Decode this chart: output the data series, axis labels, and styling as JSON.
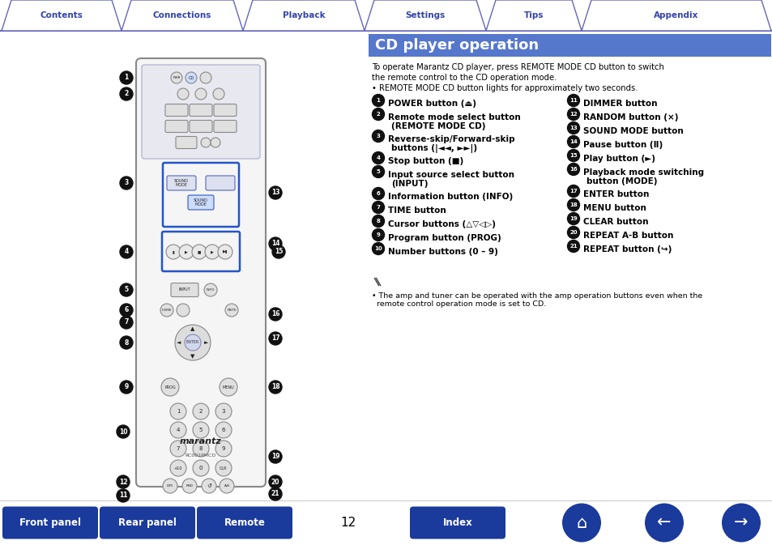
{
  "bg_color": "#ffffff",
  "page_width": 9.54,
  "page_height": 6.73,
  "dpi": 100,
  "tab_labels": [
    "Contents",
    "Connections",
    "Playback",
    "Settings",
    "Tips",
    "Appendix"
  ],
  "tab_border_color": "#6666bb",
  "tab_text_color": "#3344aa",
  "title_text": "CD player operation",
  "title_bg": "#5577cc",
  "title_text_color": "#ffffff",
  "intro_lines": [
    "To operate Marantz CD player, press REMOTE MODE CD button to switch",
    "the remote control to the CD operation mode.",
    "• REMOTE MODE CD button lights for approximately two seconds."
  ],
  "left_items": [
    [
      "1",
      "POWER button (⏏)",
      false
    ],
    [
      "2",
      "Remote mode select button\n(REMOTE MODE CD)",
      false
    ],
    [
      "3",
      "Reverse-skip/Forward-skip\nbuttons (|◄◄, ►►|)",
      false
    ],
    [
      "4",
      "Stop button (■)",
      false
    ],
    [
      "5",
      "Input source select button\n(INPUT)",
      false
    ],
    [
      "6",
      "Information button (INFO)",
      false
    ],
    [
      "7",
      "TIME button",
      false
    ],
    [
      "8",
      "Cursor buttons (△▽◁▷)",
      false
    ],
    [
      "9",
      "Program button (PROG)",
      false
    ],
    [
      "10",
      "Number buttons (0 – 9)",
      false
    ]
  ],
  "right_items": [
    [
      "11",
      "DIMMER button",
      false
    ],
    [
      "12",
      "RANDOM button (×)",
      false
    ],
    [
      "13",
      "SOUND MODE button",
      false
    ],
    [
      "14",
      "Pause button (Ⅱ)",
      false
    ],
    [
      "15",
      "Play button (►)",
      false
    ],
    [
      "16",
      "Playback mode switching\nbutton (MODE)",
      false
    ],
    [
      "17",
      "ENTER button",
      false
    ],
    [
      "18",
      "MENU button",
      false
    ],
    [
      "19",
      "CLEAR button",
      false
    ],
    [
      "20",
      "REPEAT A-B button",
      false
    ],
    [
      "21",
      "REPEAT button (↪)",
      false
    ]
  ],
  "note_text": "• The amp and tuner can be operated with the amp operation buttons even when the\n  remote control operation mode is set to CD.",
  "bottom_buttons": [
    "Front panel",
    "Rear panel",
    "Remote"
  ],
  "bottom_button_color": "#1a3a9c",
  "bottom_text_color": "#ffffff",
  "page_number": "12",
  "index_button": "Index"
}
